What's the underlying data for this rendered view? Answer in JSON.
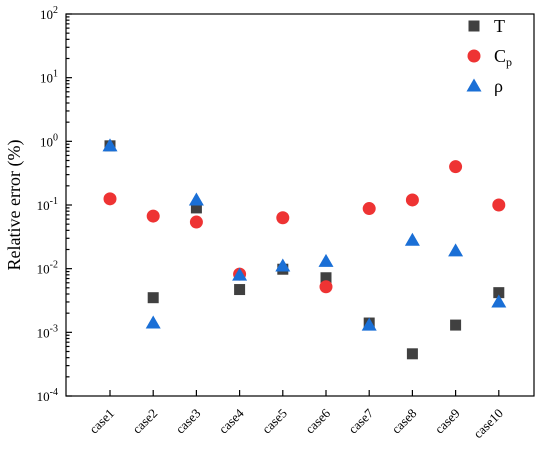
{
  "chart_data": {
    "type": "scatter",
    "categories": [
      "case1",
      "case2",
      "case3",
      "case4",
      "case5",
      "case6",
      "case7",
      "case8",
      "case9",
      "case10"
    ],
    "yscale": "log",
    "ylim": [
      0.0001,
      100
    ],
    "ylabel": "Relative error (%)",
    "xlabel": "",
    "title": "",
    "y_ticks": [
      {
        "base": "10",
        "exp": "2",
        "value": 100
      },
      {
        "base": "10",
        "exp": "1",
        "value": 10
      },
      {
        "base": "10",
        "exp": "0",
        "value": 1
      },
      {
        "base": "10",
        "exp": "-1",
        "value": 0.1
      },
      {
        "base": "10",
        "exp": "-2",
        "value": 0.01
      },
      {
        "base": "10",
        "exp": "-3",
        "value": 0.001
      },
      {
        "base": "10",
        "exp": "-4",
        "value": 0.0001
      }
    ],
    "legend_position": "top-right",
    "grid": false,
    "series": [
      {
        "name": "T",
        "name_main": "T",
        "name_sub": "",
        "marker": "square",
        "color": "#404040",
        "values": [
          0.85,
          0.0035,
          0.09,
          0.0047,
          0.0098,
          0.0072,
          0.0014,
          0.00046,
          0.0013,
          0.0042
        ]
      },
      {
        "name": "Cp",
        "name_main": "C",
        "name_sub": "p",
        "marker": "circle",
        "color": "#ee3333",
        "values": [
          0.125,
          0.067,
          0.054,
          0.0082,
          0.063,
          0.0052,
          0.088,
          0.12,
          0.4,
          0.1
        ]
      },
      {
        "name": "ρ",
        "name_main": "ρ",
        "name_sub": "",
        "marker": "triangle",
        "color": "#1a6fd6",
        "values": [
          0.85,
          0.0014,
          0.12,
          0.0079,
          0.011,
          0.013,
          0.0013,
          0.028,
          0.019,
          0.003
        ]
      }
    ]
  }
}
